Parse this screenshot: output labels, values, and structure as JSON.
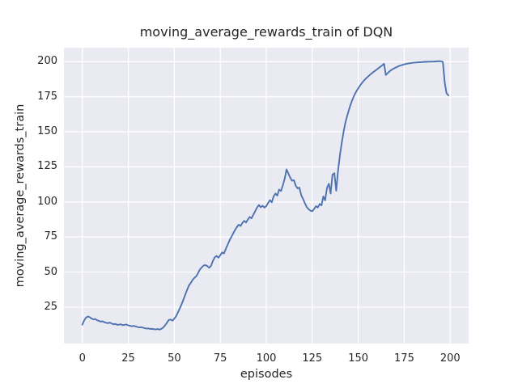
{
  "figure": {
    "title": "moving_average_rewards_train of DQN",
    "xlabel": "episodes",
    "ylabel": "moving_average_rewards_train"
  },
  "colors": {
    "figure_background": "#ffffff",
    "axes_background": "#eaeaf2",
    "grid": "#ffffff",
    "line": "#4c72b0",
    "text": "#262626"
  },
  "chart_data": {
    "type": "line",
    "title": "moving_average_rewards_train of DQN",
    "xlabel": "episodes",
    "ylabel": "moving_average_rewards_train",
    "xlim": [
      -10,
      210
    ],
    "ylim": [
      -1,
      210
    ],
    "xticks": [
      0,
      25,
      50,
      75,
      100,
      125,
      150,
      175,
      200
    ],
    "yticks": [
      25,
      50,
      75,
      100,
      125,
      150,
      175,
      200
    ],
    "grid": true,
    "legend": false,
    "series": [
      {
        "name": "moving_average_rewards_train",
        "color": "#4c72b0",
        "x_is_index": true,
        "x_range": [
          0,
          199
        ],
        "y": [
          12.5,
          15.5,
          17.5,
          18.3,
          17.8,
          16.9,
          16.2,
          16.5,
          15.6,
          15.2,
          14.6,
          14.9,
          14.2,
          13.8,
          13.5,
          14.0,
          13.2,
          12.7,
          13.0,
          12.3,
          12.5,
          12.7,
          12.1,
          12.4,
          12.6,
          11.9,
          11.7,
          11.3,
          11.6,
          11.2,
          10.8,
          10.5,
          10.7,
          10.3,
          9.9,
          9.7,
          9.8,
          9.4,
          9.5,
          9.2,
          9.1,
          9.3,
          9.0,
          9.5,
          10.5,
          12.0,
          13.9,
          15.8,
          16.1,
          15.3,
          16.8,
          18.5,
          21.3,
          24.2,
          27.2,
          30.5,
          34.0,
          37.5,
          40.5,
          42.3,
          44.5,
          46.0,
          47.0,
          49.5,
          52.0,
          53.5,
          54.7,
          55.0,
          54.2,
          53.0,
          54.5,
          58.0,
          60.5,
          61.5,
          60.2,
          62.0,
          64.0,
          63.2,
          66.5,
          69.5,
          72.5,
          75.0,
          77.5,
          80.0,
          82.0,
          83.8,
          82.8,
          85.0,
          86.5,
          85.3,
          87.5,
          89.3,
          88.3,
          91.0,
          93.5,
          96.0,
          97.8,
          96.2,
          97.3,
          95.9,
          97.0,
          99.3,
          101.2,
          99.8,
          104.0,
          106.0,
          104.5,
          108.8,
          107.8,
          112.0,
          116.4,
          123.2,
          120.3,
          117.4,
          115.1,
          115.5,
          111.6,
          109.7,
          110.2,
          104.8,
          102.0,
          99.1,
          96.3,
          94.8,
          93.8,
          93.4,
          95.0,
          97.0,
          96.0,
          98.5,
          97.5,
          103.9,
          101.1,
          110.0,
          113.0,
          106.0,
          119.5,
          120.5,
          108.0,
          122.0,
          133.0,
          142.0,
          150.0,
          156.5,
          161.5,
          166.0,
          170.0,
          173.5,
          176.5,
          179.0,
          181.0,
          183.0,
          184.8,
          186.4,
          187.8,
          189.0,
          190.2,
          191.3,
          192.4,
          193.4,
          194.4,
          195.4,
          196.4,
          197.4,
          198.5,
          190.5,
          191.9,
          193.1,
          194.1,
          194.9,
          195.6,
          196.2,
          196.8,
          197.3,
          197.7,
          198.1,
          198.4,
          198.7,
          198.9,
          199.1,
          199.3,
          199.4,
          199.5,
          199.6,
          199.7,
          199.8,
          199.9,
          199.9,
          200.0,
          200.0,
          200.1,
          200.1,
          200.2,
          200.3,
          200.4,
          200.3,
          199.8,
          185.0,
          177.5,
          176.0
        ]
      }
    ]
  }
}
